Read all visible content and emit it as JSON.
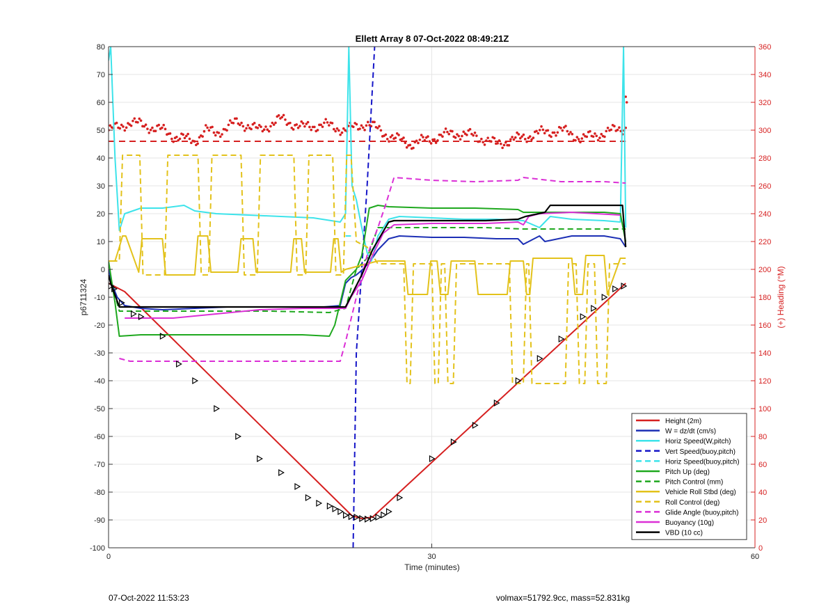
{
  "chart_data": {
    "type": "line",
    "title": "Ellett Array 8 07-Oct-2022 08:49:21Z",
    "xlabel": "Time (minutes)",
    "ylabel": "p6711324",
    "y2label": "(+) Heading (°M)",
    "xlim": [
      0,
      60
    ],
    "ylim": [
      -100,
      80
    ],
    "y2lim": [
      0,
      360
    ],
    "xticks": [
      "0",
      "30",
      "60"
    ],
    "yticks": [
      "80",
      "70",
      "60",
      "50",
      "40",
      "30",
      "20",
      "10",
      "0",
      "-10",
      "-20",
      "-30",
      "-40",
      "-50",
      "-60",
      "-70",
      "-80",
      "-90",
      "-100"
    ],
    "y2ticks": [
      "360",
      "340",
      "320",
      "300",
      "280",
      "260",
      "240",
      "220",
      "200",
      "180",
      "160",
      "140",
      "120",
      "100",
      "80",
      "60",
      "40",
      "20",
      "0"
    ],
    "grid": true,
    "legend_position": "bottom-right",
    "colors": {
      "red": "#d62020",
      "blue": "#1c2fb5",
      "cyan": "#3de3ea",
      "navy": "#1515c8",
      "green": "#1ea81e",
      "yellow": "#e3c21b",
      "magenta": "#db2fd6",
      "black": "#000000",
      "heading": "#d62020",
      "axis_right": "#d62020"
    },
    "series": [
      {
        "name": "Height (2m)",
        "color": "red",
        "dash": false,
        "width": 2,
        "x": [
          0,
          1.5,
          22.6,
          23.5,
          24.5,
          48
        ],
        "y": [
          -5,
          -8,
          -88.5,
          -89.5,
          -89,
          -5
        ]
      },
      {
        "name": "W = dz/dt (cm/s)",
        "color": "blue",
        "dash": false,
        "width": 2,
        "x": [
          0,
          0.3,
          0.8,
          1.5,
          3,
          5,
          8,
          11,
          14,
          17,
          20,
          21.5,
          22,
          22.5,
          23,
          23.6,
          24.3,
          25,
          26,
          27,
          30,
          33,
          36,
          38,
          38.5,
          40,
          40.5,
          43,
          46,
          47.5,
          48
        ],
        "y": [
          0,
          -5,
          -10,
          -13,
          -14,
          -14.5,
          -14,
          -13.5,
          -13.5,
          -13.5,
          -13.5,
          -13,
          -5,
          -3,
          -2,
          0,
          3,
          7,
          11,
          12,
          11.5,
          11.5,
          11,
          11,
          9,
          12,
          10,
          12,
          12,
          11,
          8
        ]
      },
      {
        "name": "Horiz Speed(W,pitch)",
        "color": "cyan",
        "dash": false,
        "width": 2,
        "x": [
          0,
          0.2,
          0.6,
          1.0,
          1.5,
          3,
          5,
          7,
          8,
          10,
          13,
          16,
          19,
          21.5,
          22.0,
          22.3,
          22.6,
          23.0,
          23.5,
          24.0,
          24.4,
          25,
          26,
          27,
          30,
          33,
          36,
          38.5,
          40,
          41,
          43,
          46,
          47.5,
          47.8,
          48
        ],
        "y": [
          75,
          80,
          40,
          14,
          20,
          22,
          22,
          23,
          21,
          20,
          19.5,
          19,
          18.5,
          17,
          20,
          80,
          30,
          25,
          15,
          6,
          3,
          12,
          18,
          19,
          18.5,
          18,
          18,
          17.5,
          15,
          19,
          18,
          17.5,
          17,
          80,
          15
        ]
      },
      {
        "name": "Vert Speed(buoy,pitch)",
        "color": "navy",
        "dash": true,
        "width": 2,
        "x": [
          22.7,
          23.0,
          24.0,
          24.7
        ],
        "y": [
          -100,
          -30,
          30,
          80
        ]
      },
      {
        "name": "Horiz Speed(buoy,pitch)",
        "color": "cyan",
        "dash": true,
        "width": 2,
        "x": [
          22,
          22.5
        ],
        "y": [
          12,
          12
        ]
      },
      {
        "name": "Pitch Up (deg)",
        "color": "green",
        "dash": false,
        "width": 2,
        "x": [
          0,
          0.6,
          1.0,
          3,
          6,
          10,
          14,
          18,
          20.5,
          21,
          22,
          23,
          23.5,
          24.2,
          25,
          26,
          30,
          34,
          38,
          38.5,
          43,
          46,
          47.5,
          48
        ],
        "y": [
          3,
          -12,
          -24,
          -23.5,
          -23.5,
          -23.5,
          -23.5,
          -23.5,
          -24,
          -20,
          -4,
          0,
          5,
          22,
          23,
          22.5,
          22,
          22,
          21.5,
          20.5,
          20.5,
          20.5,
          20,
          10
        ]
      },
      {
        "name": "Pitch Control (mm)",
        "color": "green",
        "dash": true,
        "width": 2,
        "x": [
          0.3,
          1.0,
          5,
          10,
          15,
          20.5,
          22,
          23,
          24,
          25,
          26,
          30,
          35,
          38.5,
          40,
          45,
          48
        ],
        "y": [
          -5,
          -15,
          -15,
          -15,
          -15,
          -15.5,
          -14,
          0,
          4,
          15,
          15,
          15,
          15,
          14.5,
          14.5,
          14.5,
          14.5
        ]
      },
      {
        "name": "Vehicle Roll Stbd (deg)",
        "color": "yellow",
        "dash": false,
        "width": 2,
        "x": [
          0,
          0.6,
          1.0,
          1.3,
          1.6,
          2.8,
          3.1,
          5,
          5.3,
          8,
          8.3,
          9.2,
          9.5,
          12,
          12.3,
          13.4,
          13.7,
          16.9,
          17.2,
          17.9,
          18.2,
          20.6,
          20.9,
          21.3,
          21.6,
          22.0,
          23.0,
          24.0,
          25,
          26,
          27.5,
          27.8,
          29.6,
          29.9,
          30.5,
          30.8,
          31.5,
          31.8,
          34,
          34.3,
          37,
          37.3,
          38.5,
          38.8,
          39.1,
          39.4,
          43,
          43.3,
          44.0,
          44.3,
          46,
          46.3,
          47.5,
          48
        ],
        "y": [
          3,
          3,
          8,
          12,
          12,
          -1,
          11,
          11,
          -2,
          -2,
          12,
          12,
          -1,
          -1,
          11,
          11,
          -1,
          -1,
          11,
          11,
          -1,
          -1,
          11,
          11,
          -1,
          0,
          1,
          2,
          3,
          3,
          3,
          -9,
          -9,
          3,
          3,
          -9,
          -9,
          3,
          3,
          -9,
          -9,
          3,
          3,
          -9,
          -9,
          4,
          4,
          -9,
          -9,
          5,
          5,
          -9,
          4,
          4
        ]
      },
      {
        "name": "Roll Control (deg)",
        "color": "yellow",
        "dash": true,
        "width": 2,
        "x": [
          0.3,
          1.0,
          1.3,
          2.9,
          3.2,
          5.2,
          5.5,
          8.3,
          8.6,
          9.3,
          9.6,
          12.3,
          12.6,
          13.8,
          14.1,
          17.2,
          17.5,
          18.3,
          18.6,
          20.8,
          21.1,
          21.8,
          22.1,
          22.5,
          23,
          24,
          25,
          27.4,
          27.7,
          28.0,
          28.3,
          30.0,
          30.3,
          30.6,
          30.9,
          31.2,
          31.5,
          32.0,
          32.3,
          37.2,
          37.5,
          38.5,
          38.8,
          39.0,
          39.3,
          42.4,
          42.7,
          43.4,
          43.7,
          44.2,
          44.5,
          45.1,
          45.4,
          46.2,
          46.5,
          48
        ],
        "y": [
          3,
          3,
          41,
          41,
          -2,
          -2,
          41,
          41,
          -2,
          -2,
          41,
          41,
          -2,
          -2,
          41,
          41,
          -2,
          -2,
          41,
          41,
          -2,
          -2,
          41,
          41,
          10,
          8,
          2,
          2,
          -41,
          -41,
          2,
          2,
          -41,
          -41,
          2,
          2,
          -41,
          -41,
          2,
          2,
          -41,
          -41,
          2,
          2,
          -41,
          -41,
          2,
          2,
          -41,
          -41,
          2,
          2,
          -41,
          -41,
          2,
          2
        ]
      },
      {
        "name": "Glide Angle (buoy,pitch)",
        "color": "magenta",
        "dash": true,
        "width": 2,
        "x": [
          1,
          2,
          5,
          10,
          15,
          20,
          21.5,
          22,
          23,
          24,
          25,
          25.7,
          26.5,
          30,
          34,
          38,
          38.5,
          42,
          46,
          48
        ],
        "y": [
          -32,
          -33,
          -33,
          -33,
          -33,
          -33,
          -33,
          -26,
          -10,
          5,
          15,
          23,
          33,
          32,
          31.5,
          32,
          33,
          31.5,
          31.5,
          31
        ]
      },
      {
        "name": "Buoyancy (10g)",
        "color": "magenta",
        "dash": false,
        "width": 2,
        "x": [
          1.5,
          6,
          10,
          14,
          18,
          22,
          22.5,
          23.5,
          24.5,
          25.5,
          26.5,
          30,
          35,
          38,
          38.5,
          39,
          40,
          43,
          47.5
        ],
        "y": [
          -17.5,
          -17.5,
          -16,
          -14.5,
          -14,
          -14,
          -10,
          -4,
          5,
          13,
          16,
          16.5,
          16.5,
          17,
          16,
          19,
          20,
          20.5,
          19.5
        ]
      },
      {
        "name": "VBD (10 cc)",
        "color": "black",
        "dash": false,
        "width": 2.2,
        "x": [
          0,
          0.2,
          1.0,
          10,
          20.5,
          22.0,
          23.5,
          24.5,
          26,
          26.5,
          30,
          35,
          38,
          38.7,
          40.5,
          41,
          45,
          47.7,
          48
        ],
        "y": [
          -2,
          -5,
          -13.5,
          -13.5,
          -13.5,
          -13.5,
          -2,
          7,
          17,
          17.5,
          17.5,
          17.5,
          18,
          19,
          20.5,
          23,
          23,
          23,
          8
        ]
      }
    ],
    "heading_mean": {
      "y2": 292
    },
    "heading_points": {
      "x_start": 0.0,
      "x_end": 48.0,
      "count": 320,
      "base": 296,
      "amplitude": 6,
      "segments": [
        {
          "x": [
            0,
            1,
            2,
            5,
            6,
            8,
            9,
            10,
            12,
            14,
            16,
            18,
            20,
            22,
            24,
            26,
            28,
            30,
            32,
            34,
            36,
            38,
            40,
            42,
            44,
            46,
            48
          ],
          "y2": [
            300,
            302,
            306,
            300,
            296,
            292,
            300,
            298,
            306,
            300,
            308,
            302,
            304,
            300,
            305,
            296,
            290,
            294,
            298,
            296,
            290,
            294,
            298,
            300,
            294,
            298,
            302
          ]
        }
      ]
    },
    "markers": {
      "x": [
        0.2,
        0.5,
        1.2,
        2.3,
        3.0,
        5.0,
        6.5,
        8.0,
        10,
        12,
        14,
        16,
        17.5,
        18.5,
        19.5,
        20.5,
        21.0,
        21.5,
        22.0,
        22.5,
        23.0,
        23.5,
        24.0,
        24.5,
        25.0,
        25.5,
        26.0,
        27.0,
        30.0,
        32.0,
        34.0,
        36.0,
        38.0,
        40.0,
        42.0,
        44.0,
        45.0,
        46.0,
        47.0,
        47.8
      ],
      "y": [
        -6,
        -7,
        -12,
        -16,
        -17,
        -24,
        -34,
        -40,
        -50,
        -60,
        -68,
        -73,
        -78,
        -82,
        -84,
        -85,
        -86,
        -87,
        -88.3,
        -88.8,
        -89,
        -89.5,
        -89.7,
        -89.5,
        -89,
        -88.2,
        -87,
        -82,
        -68,
        -62,
        -56,
        -48,
        -40,
        -32,
        -25,
        -17,
        -14,
        -10,
        -7,
        -6
      ]
    }
  },
  "footer": {
    "left": "07-Oct-2022 11:53:23",
    "right": "volmax=51792.9cc, mass=52.831kg"
  }
}
